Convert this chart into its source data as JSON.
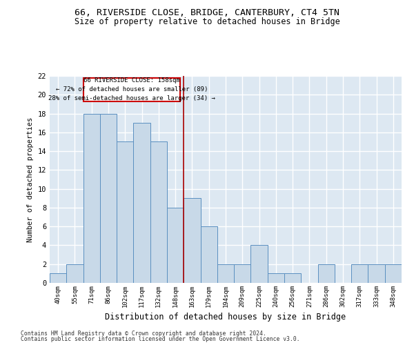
{
  "title_line1": "66, RIVERSIDE CLOSE, BRIDGE, CANTERBURY, CT4 5TN",
  "title_line2": "Size of property relative to detached houses in Bridge",
  "xlabel": "Distribution of detached houses by size in Bridge",
  "ylabel": "Number of detached properties",
  "categories": [
    "40sqm",
    "55sqm",
    "71sqm",
    "86sqm",
    "102sqm",
    "117sqm",
    "132sqm",
    "148sqm",
    "163sqm",
    "179sqm",
    "194sqm",
    "209sqm",
    "225sqm",
    "240sqm",
    "256sqm",
    "271sqm",
    "286sqm",
    "302sqm",
    "317sqm",
    "333sqm",
    "348sqm"
  ],
  "values": [
    1,
    2,
    18,
    18,
    15,
    17,
    15,
    8,
    9,
    6,
    2,
    2,
    4,
    1,
    1,
    0,
    2,
    0,
    2,
    2,
    2
  ],
  "bar_color": "#c8d9e8",
  "bar_edge_color": "#5a8fc0",
  "ylim": [
    0,
    22
  ],
  "yticks": [
    0,
    2,
    4,
    6,
    8,
    10,
    12,
    14,
    16,
    18,
    20,
    22
  ],
  "property_label": "66 RIVERSIDE CLOSE: 158sqm",
  "pct_smaller": "72% of detached houses are smaller (89)",
  "pct_larger": "28% of semi-detached houses are larger (34)",
  "vline_position": 7.5,
  "footer_line1": "Contains HM Land Registry data © Crown copyright and database right 2024.",
  "footer_line2": "Contains public sector information licensed under the Open Government Licence v3.0.",
  "background_color": "#dde8f2",
  "grid_color": "#ffffff",
  "vline_color": "#aa0000",
  "box_edge_color": "#cc0000"
}
